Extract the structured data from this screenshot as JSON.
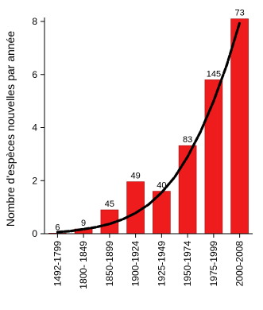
{
  "chart_data": {
    "type": "bar",
    "ylabel": "Nombre d'espèces nouvelles par année",
    "xlabel": "",
    "categories": [
      "1492-1799",
      "1800- 1849",
      "1850-1899",
      "1900-1924",
      "1925-1949",
      "1950-1974",
      "1975-1999",
      "2000-2008"
    ],
    "values": [
      0.02,
      0.18,
      0.9,
      1.96,
      1.6,
      3.32,
      5.8,
      8.1
    ],
    "data_labels": [
      "6",
      "9",
      "45",
      "49",
      "40",
      "83",
      "145",
      "73"
    ],
    "ylim": [
      0,
      8
    ],
    "yticks": [
      0,
      2,
      4,
      6,
      8
    ],
    "trend": {
      "style": "dashed-black",
      "x": [
        0,
        0.5,
        1,
        1.5,
        2,
        2.5,
        3,
        3.5,
        4,
        4.5,
        5,
        5.5,
        6,
        6.5,
        7
      ],
      "y": [
        0.06,
        0.1,
        0.17,
        0.25,
        0.37,
        0.54,
        0.78,
        1.1,
        1.55,
        2.13,
        2.9,
        3.85,
        5.0,
        6.35,
        7.95
      ]
    },
    "grid": false,
    "legend": "none",
    "colors": {
      "bar": "#ee1c1c",
      "bar_edge": "#a30d0d",
      "trend": "#000000",
      "axis": "#000000"
    }
  }
}
